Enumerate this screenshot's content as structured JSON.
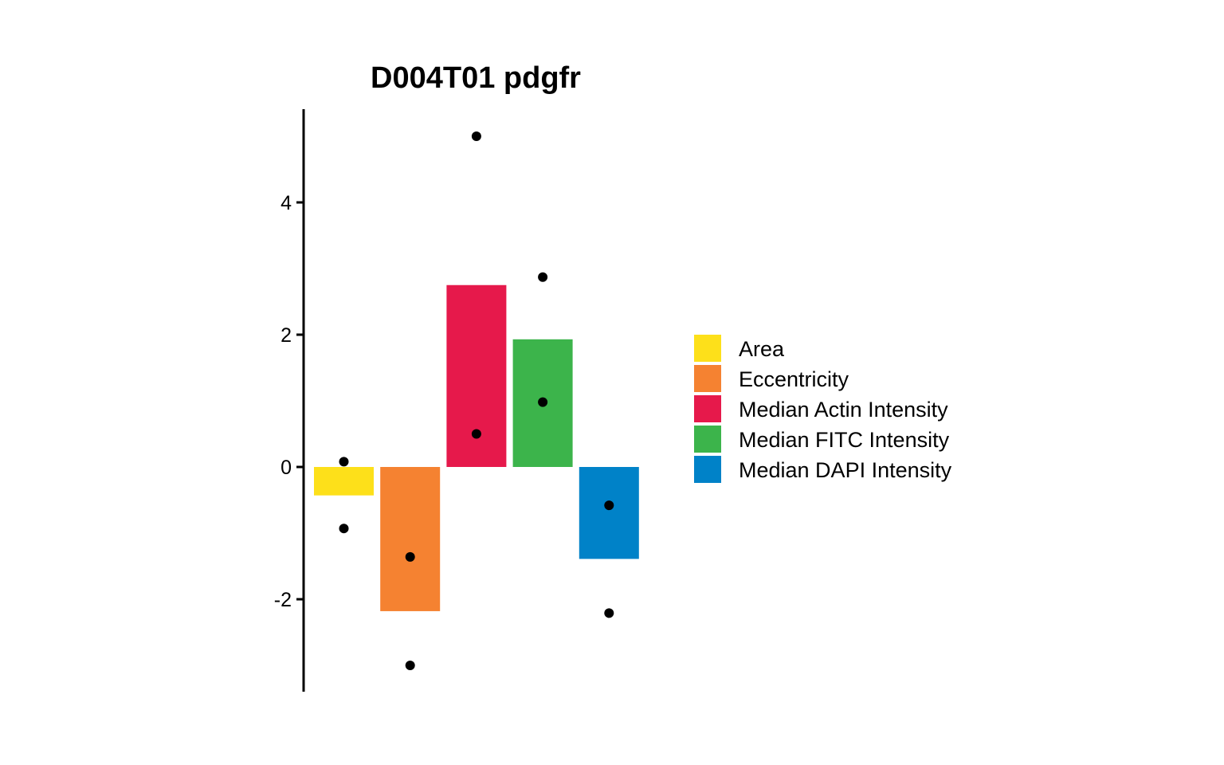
{
  "chart_data": {
    "type": "bar",
    "title": "D004T01 pdgfr",
    "xlabel": "",
    "ylabel": "",
    "ylim": [
      -3.4,
      5.4
    ],
    "yticks": [
      -2,
      0,
      2,
      4
    ],
    "ytick_labels": [
      "-2",
      "0",
      "2",
      "4"
    ],
    "categories": [
      "Area",
      "Eccentricity",
      "Median Actin Intensity",
      "Median FITC Intensity",
      "Median DAPI Intensity"
    ],
    "values": [
      -0.43,
      -2.18,
      2.75,
      1.93,
      -1.39
    ],
    "colors": [
      "#FDE01A",
      "#F58231",
      "#E6194B",
      "#3CB44B",
      "#0082C8"
    ],
    "points": [
      [
        0.08,
        -0.93
      ],
      [
        -1.36,
        -3.0
      ],
      [
        5.0,
        0.5
      ],
      [
        2.87,
        0.98
      ],
      [
        -0.58,
        -2.21
      ]
    ],
    "legend": {
      "position": "right",
      "entries": [
        "Area",
        "Eccentricity",
        "Median Actin Intensity",
        "Median FITC Intensity",
        "Median DAPI Intensity"
      ]
    },
    "grid": false
  }
}
